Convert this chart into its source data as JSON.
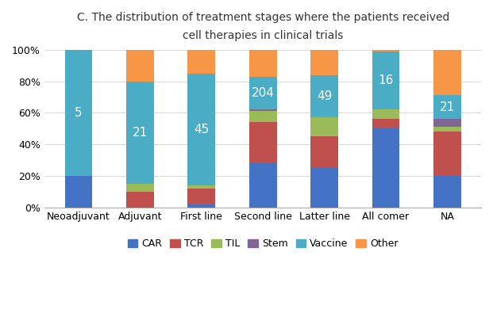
{
  "title_line1": "C. The distribution of treatment stages where the patients received",
  "title_line2": "cell therapies in clinical trials",
  "categories": [
    "Neoadjuvant",
    "Adjuvant",
    "First line",
    "Second line",
    "Latter line",
    "All comer",
    "NA"
  ],
  "labels": [
    "5",
    "21",
    "45",
    "204",
    "49",
    "16",
    "21"
  ],
  "legend_labels": [
    "CAR",
    "TCR",
    "TIL",
    "Stem",
    "Vaccine",
    "Other"
  ],
  "colors": [
    "#4472C4",
    "#C0504D",
    "#9BBB59",
    "#7F6694",
    "#4BACC6",
    "#F79646"
  ],
  "data": {
    "CAR": [
      20,
      0,
      2,
      28,
      25,
      50,
      20
    ],
    "TCR": [
      0,
      10,
      10,
      26,
      20,
      6,
      28
    ],
    "TIL": [
      0,
      5,
      2,
      7,
      12,
      6,
      3
    ],
    "Stem": [
      0,
      0,
      0,
      1,
      0,
      0,
      5
    ],
    "Vaccine": [
      80,
      65,
      71,
      21,
      27,
      37,
      15
    ],
    "Other": [
      0,
      20,
      15,
      17,
      16,
      1,
      29
    ]
  },
  "ylim": [
    0,
    100
  ],
  "yticks": [
    0,
    20,
    40,
    60,
    80,
    100
  ],
  "ytick_labels": [
    "0%",
    "20%",
    "40%",
    "60%",
    "80%",
    "100%"
  ],
  "bar_width": 0.45,
  "background_color": "#FFFFFF",
  "label_color": "white",
  "label_fontsize": 11,
  "title_fontsize": 10,
  "axis_fontsize": 9,
  "legend_fontsize": 9
}
